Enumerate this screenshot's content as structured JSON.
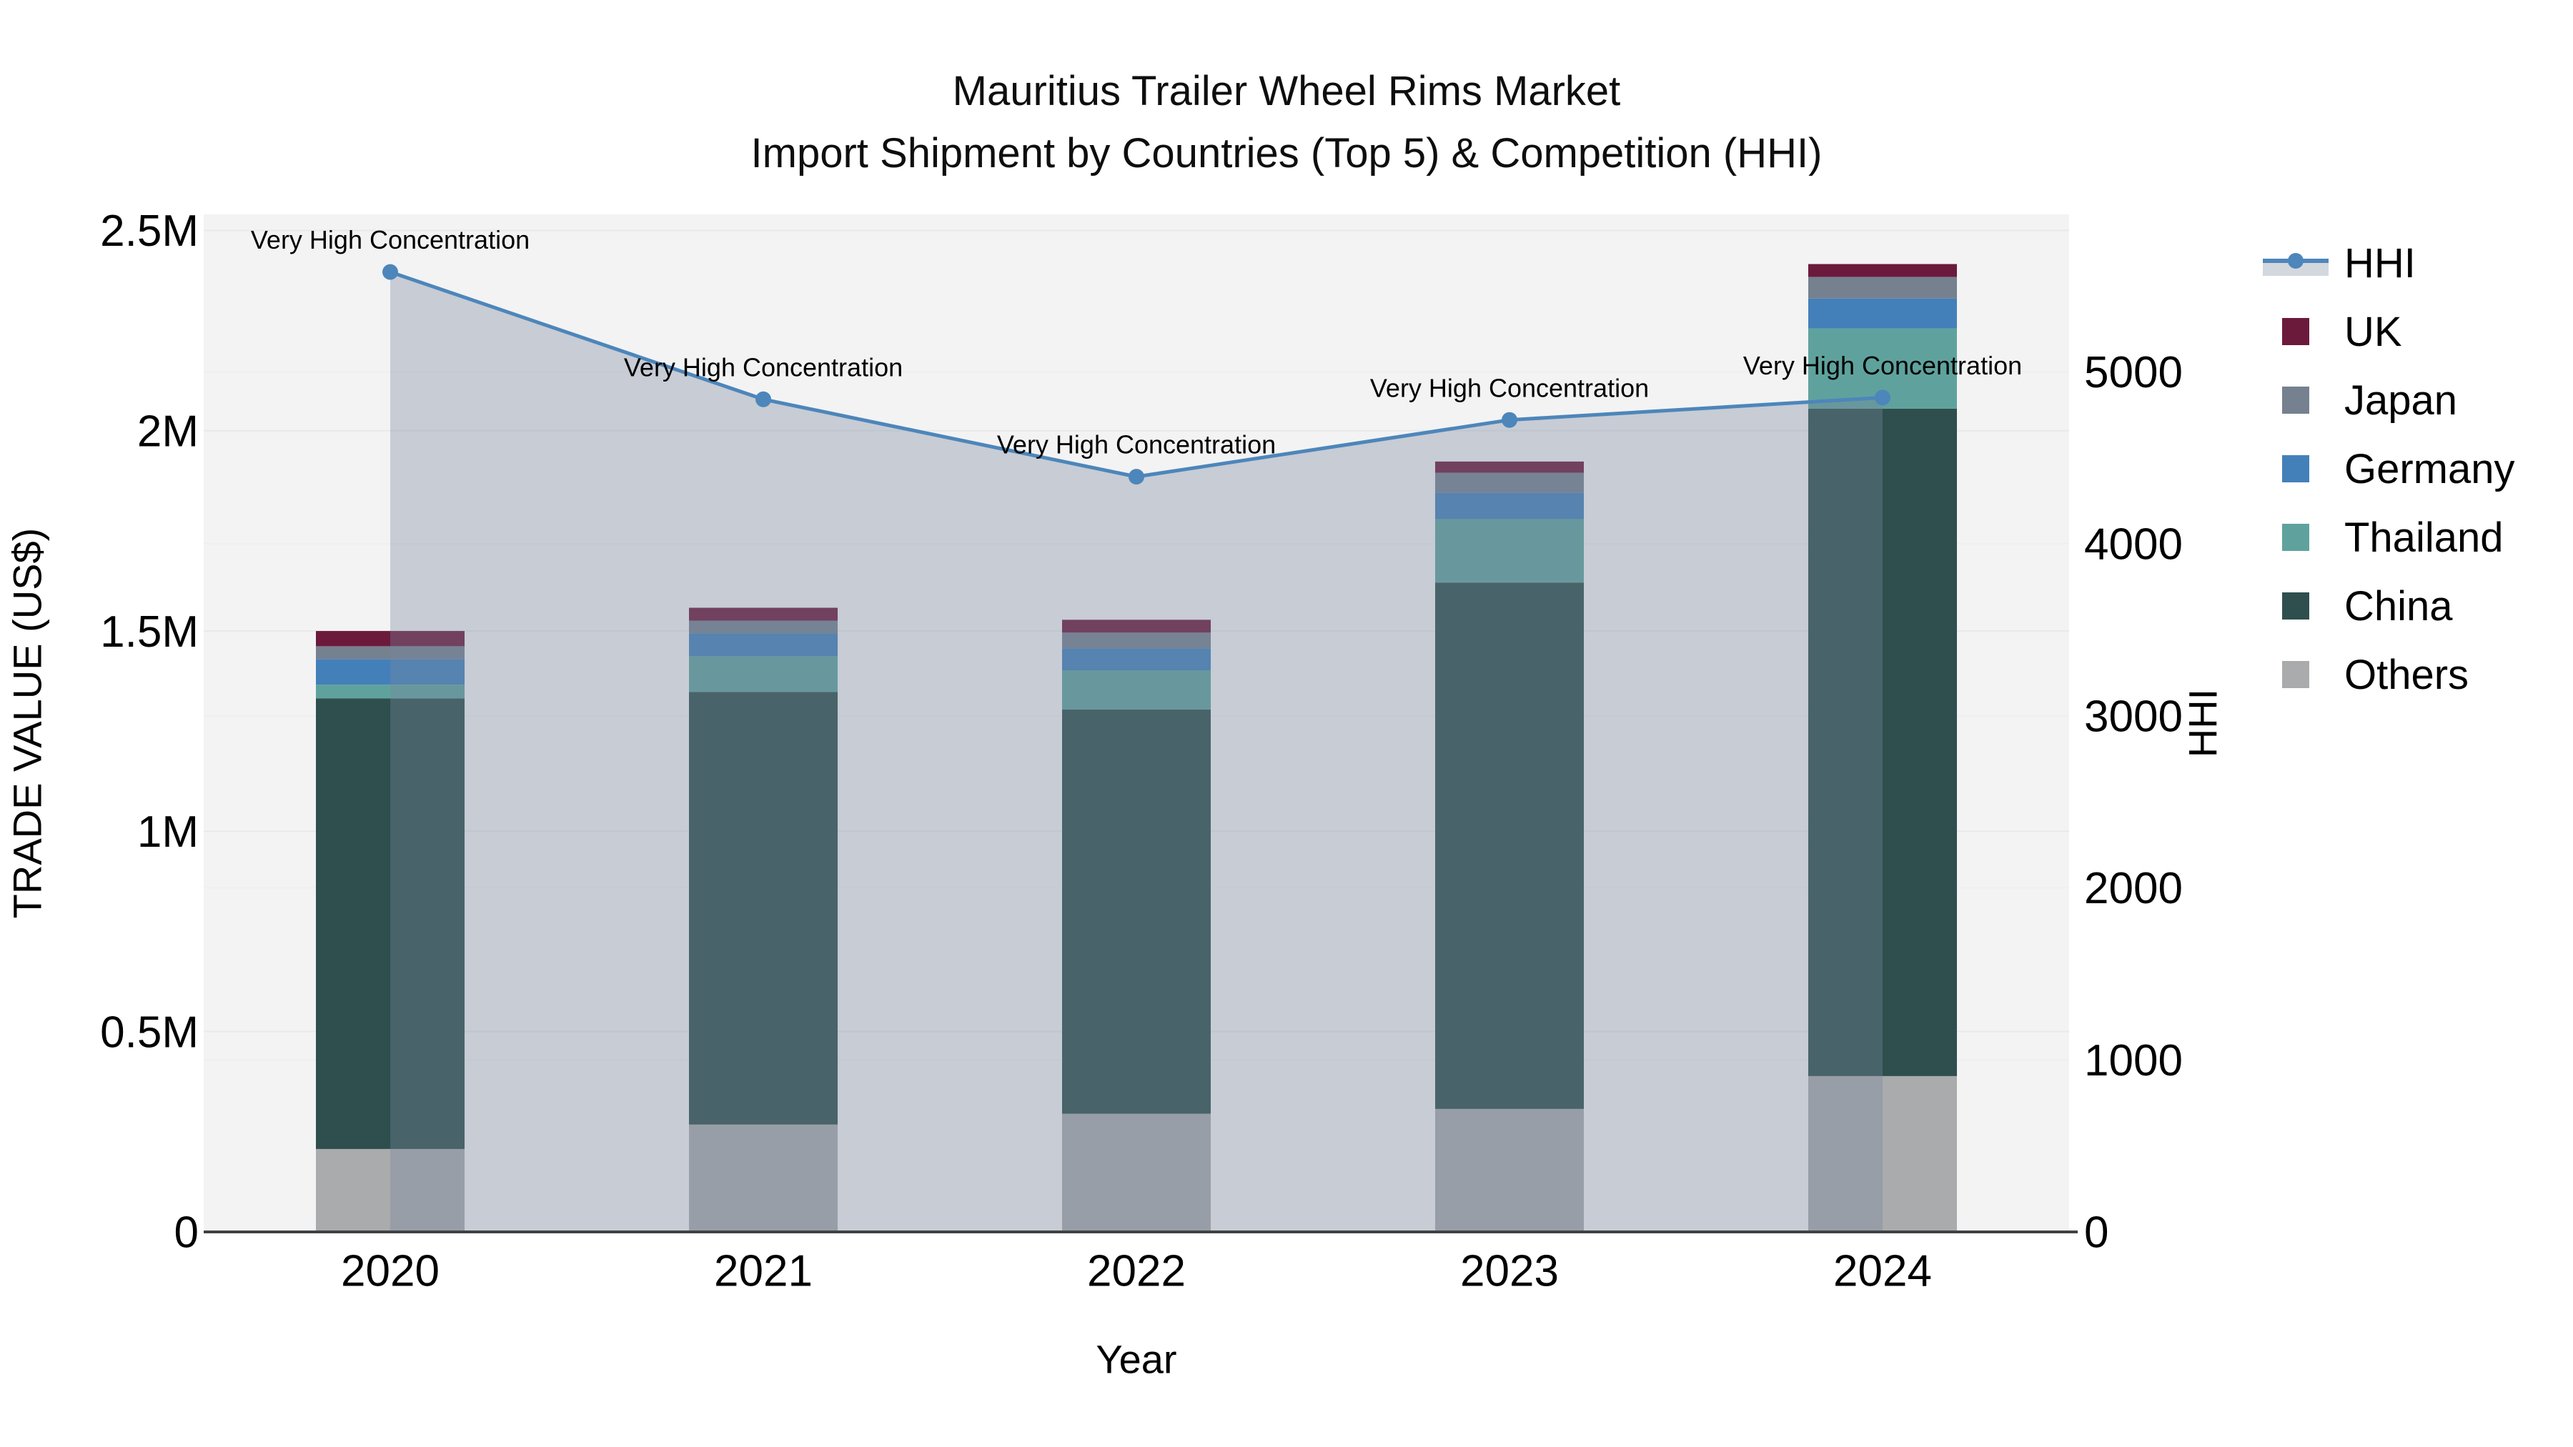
{
  "chart_data": {
    "type": "combo-stacked-bar-line",
    "title": "Mauritius Trailer Wheel Rims Market",
    "subtitle": "Import Shipment by Countries (Top 5) & Competition (HHI)",
    "x": {
      "label": "Year",
      "categories": [
        "2020",
        "2021",
        "2022",
        "2023",
        "2024"
      ]
    },
    "y_left": {
      "label": "TRADE VALUE (US$)",
      "tick_values": [
        0,
        500000,
        1000000,
        1500000,
        2000000,
        2500000
      ],
      "tick_labels": [
        "0",
        "0.5M",
        "1M",
        "1.5M",
        "2M",
        "2.5M"
      ],
      "range": [
        0,
        2540000
      ]
    },
    "y_right": {
      "label": "HHI",
      "tick_values": [
        0,
        1000,
        2000,
        3000,
        4000,
        5000
      ],
      "tick_labels": [
        "0",
        "1000",
        "2000",
        "3000",
        "4000",
        "5000"
      ],
      "range": [
        0,
        5915
      ]
    },
    "bar_series": [
      {
        "name": "Others",
        "color": "#a9abac",
        "values": [
          207000,
          268000,
          295000,
          307000,
          389000
        ]
      },
      {
        "name": "China",
        "color": "#2e4f4d",
        "values": [
          1125000,
          1080000,
          1009000,
          1314000,
          1666000
        ]
      },
      {
        "name": "Thailand",
        "color": "#5fa29d",
        "values": [
          34000,
          89000,
          98000,
          158000,
          200000
        ]
      },
      {
        "name": "Germany",
        "color": "#4380b9",
        "values": [
          64000,
          57000,
          55000,
          66000,
          75000
        ]
      },
      {
        "name": "Japan",
        "color": "#75818f",
        "values": [
          32000,
          32000,
          39000,
          50000,
          54000
        ]
      },
      {
        "name": "UK",
        "color": "#6c1a3c",
        "values": [
          38000,
          32000,
          32000,
          28000,
          32000
        ]
      }
    ],
    "line_series": {
      "name": "HHI",
      "color": "#4d86ba",
      "fill_color": "rgba(122,136,158,0.36)",
      "values": [
        5580,
        4840,
        4390,
        4720,
        4850
      ]
    },
    "annotations": [
      {
        "category": "2020",
        "text": "Very High Concentration"
      },
      {
        "category": "2021",
        "text": "Very High Concentration"
      },
      {
        "category": "2022",
        "text": "Very High Concentration"
      },
      {
        "category": "2023",
        "text": "Very High Concentration"
      },
      {
        "category": "2024",
        "text": "Very High Concentration"
      }
    ],
    "legend": [
      {
        "id": "hhi",
        "label": "HHI",
        "type": "line"
      },
      {
        "id": "uk",
        "label": "UK",
        "type": "swatch",
        "color": "#6c1a3c"
      },
      {
        "id": "japan",
        "label": "Japan",
        "type": "swatch",
        "color": "#75818f"
      },
      {
        "id": "germany",
        "label": "Germany",
        "type": "swatch",
        "color": "#4380b9"
      },
      {
        "id": "thailand",
        "label": "Thailand",
        "type": "swatch",
        "color": "#5fa29d"
      },
      {
        "id": "china",
        "label": "China",
        "type": "swatch",
        "color": "#2e4f4d"
      },
      {
        "id": "others",
        "label": "Others",
        "type": "swatch",
        "color": "#a9abac"
      }
    ],
    "colors": {
      "plot_background": "#f3f3f4",
      "grid_left": "#e8e9ea",
      "grid_right": "#eeeff0",
      "axis_line": "#3f4245"
    }
  }
}
